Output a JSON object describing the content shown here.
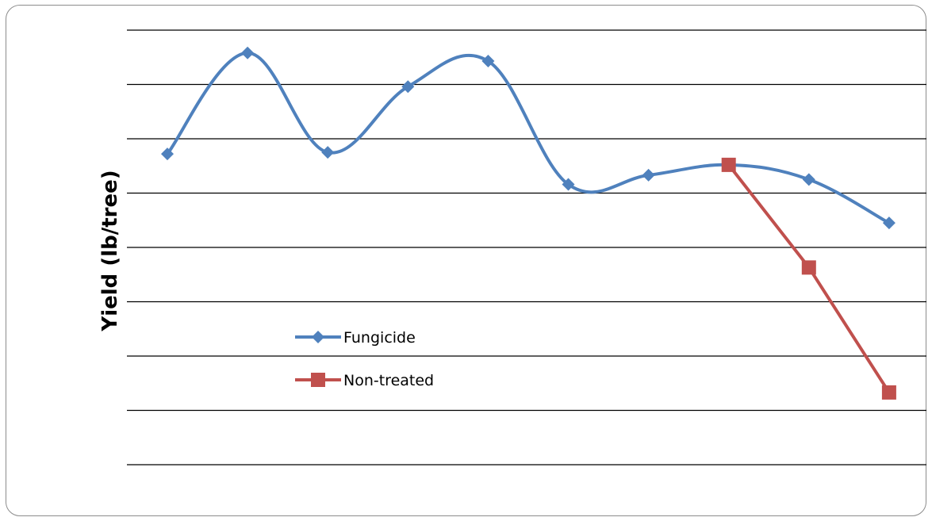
{
  "chart_data": {
    "type": "line",
    "title": "",
    "xlabel": "",
    "ylabel": "Yield (lb/tree)",
    "ylim": [
      0,
      8
    ],
    "grid": true,
    "legend_position": "lower-left inside plot",
    "x": [
      1,
      2,
      3,
      4,
      5,
      6,
      7,
      8,
      9,
      10
    ],
    "series": [
      {
        "name": "Fungicide",
        "color": "#4F81BD",
        "marker": "diamond",
        "smooth": true,
        "x": [
          1,
          2,
          3,
          4,
          5,
          6,
          7,
          8,
          9,
          10
        ],
        "values": [
          5.72,
          7.58,
          5.75,
          6.96,
          7.43,
          5.16,
          5.33,
          5.52,
          5.25,
          4.45
        ]
      },
      {
        "name": "Non-treated",
        "color": "#C0504D",
        "marker": "square",
        "smooth": false,
        "x": [
          8,
          9,
          10
        ],
        "values": [
          5.52,
          3.63,
          1.33
        ]
      }
    ]
  }
}
